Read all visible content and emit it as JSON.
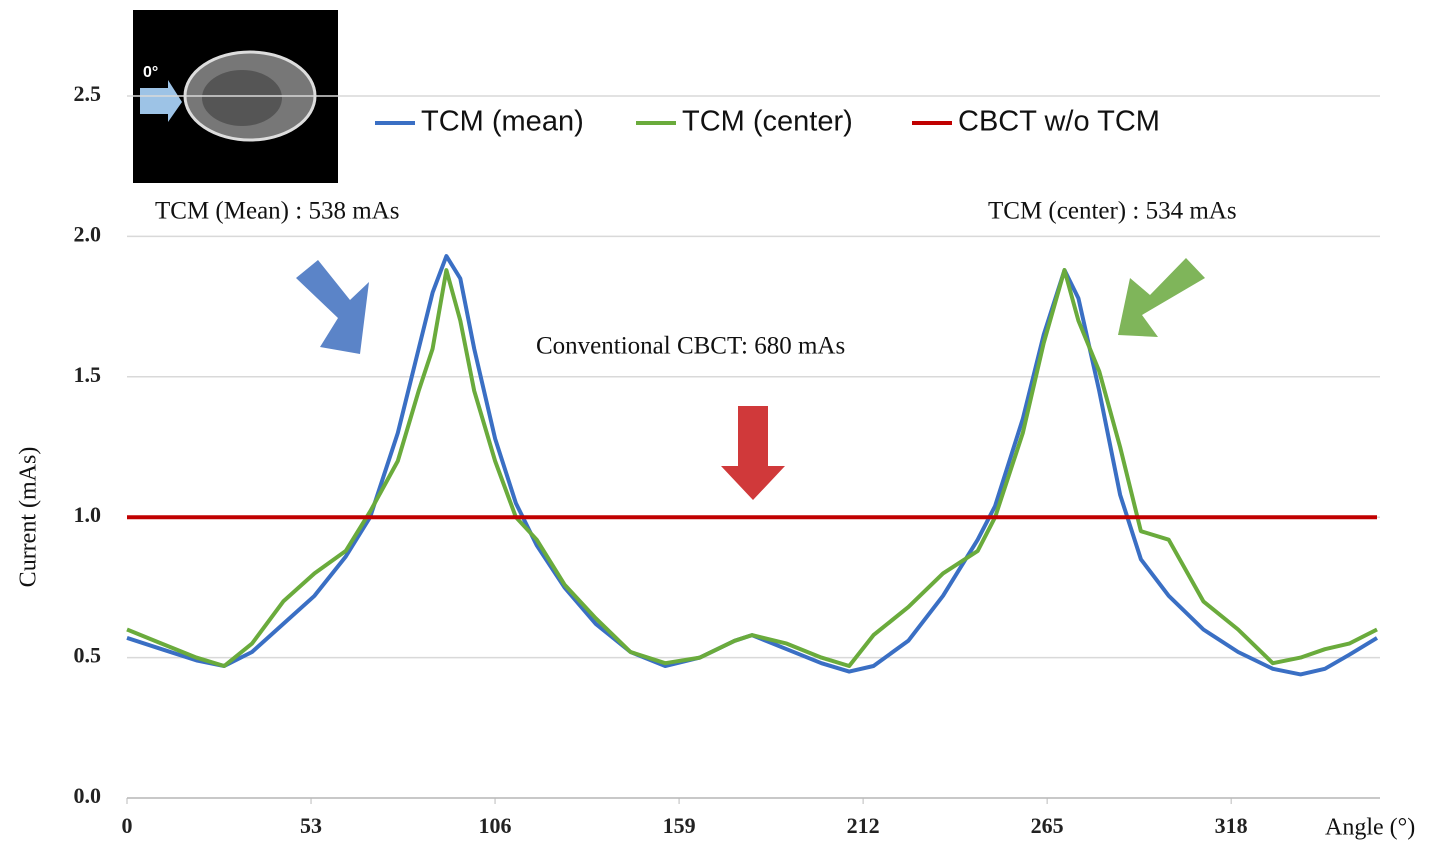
{
  "chart_data": {
    "type": "line",
    "y_label": "Current (mAs)",
    "x_label": "Angle (°)",
    "annotations": [
      "TCM (Mean) : 538 mAs",
      "TCM (center) : 534 mAs",
      "Conventional CBCT: 680 mAs",
      "0°"
    ],
    "x": [
      0,
      10,
      20,
      28,
      36,
      45,
      54,
      63,
      70,
      78,
      84,
      88,
      92,
      96,
      100,
      106,
      112,
      118,
      126,
      135,
      145,
      155,
      165,
      175,
      180,
      190,
      200,
      208,
      215,
      225,
      235,
      245,
      250,
      258,
      264,
      270,
      274,
      280,
      286,
      292,
      300,
      310,
      320,
      330,
      338,
      345,
      352,
      360
    ],
    "series": [
      {
        "name": "TCM (mean)",
        "color": "#3a6fc4",
        "values": [
          0.57,
          0.53,
          0.49,
          0.47,
          0.52,
          0.62,
          0.72,
          0.86,
          1.0,
          1.3,
          1.6,
          1.8,
          1.93,
          1.85,
          1.6,
          1.28,
          1.05,
          0.9,
          0.75,
          0.62,
          0.52,
          0.47,
          0.5,
          0.56,
          0.58,
          0.53,
          0.48,
          0.45,
          0.47,
          0.56,
          0.72,
          0.92,
          1.04,
          1.35,
          1.65,
          1.88,
          1.78,
          1.45,
          1.08,
          0.85,
          0.72,
          0.6,
          0.52,
          0.46,
          0.44,
          0.46,
          0.51,
          0.57
        ]
      },
      {
        "name": "TCM (center)",
        "color": "#6aab3c",
        "values": [
          0.6,
          0.55,
          0.5,
          0.47,
          0.55,
          0.7,
          0.8,
          0.88,
          1.02,
          1.2,
          1.45,
          1.6,
          1.88,
          1.7,
          1.45,
          1.2,
          1.0,
          0.92,
          0.76,
          0.64,
          0.52,
          0.48,
          0.5,
          0.56,
          0.58,
          0.55,
          0.5,
          0.47,
          0.58,
          0.68,
          0.8,
          0.88,
          1.0,
          1.3,
          1.62,
          1.88,
          1.7,
          1.52,
          1.25,
          0.95,
          0.92,
          0.7,
          0.6,
          0.48,
          0.5,
          0.53,
          0.55,
          0.6
        ]
      },
      {
        "name": "CBCT w/o TCM",
        "color": "#c00000",
        "values": [
          1.0,
          1.0,
          1.0,
          1.0,
          1.0,
          1.0,
          1.0,
          1.0,
          1.0,
          1.0,
          1.0,
          1.0,
          1.0,
          1.0,
          1.0,
          1.0,
          1.0,
          1.0,
          1.0,
          1.0,
          1.0,
          1.0,
          1.0,
          1.0,
          1.0,
          1.0,
          1.0,
          1.0,
          1.0,
          1.0,
          1.0,
          1.0,
          1.0,
          1.0,
          1.0,
          1.0,
          1.0,
          1.0,
          1.0,
          1.0,
          1.0,
          1.0,
          1.0,
          1.0,
          1.0,
          1.0,
          1.0,
          1.0
        ]
      }
    ],
    "xlim": [
      0,
      360
    ],
    "xticks": [
      0,
      53,
      106,
      159,
      212,
      265,
      318
    ],
    "ylim": [
      0,
      2.5
    ],
    "yticks": [
      {
        "value": 0,
        "label": "0.0"
      },
      0.5,
      {
        "value": 1,
        "label": "1.0"
      },
      1.5,
      {
        "value": 2,
        "label": "2.0"
      },
      2.5
    ],
    "grid": true
  }
}
